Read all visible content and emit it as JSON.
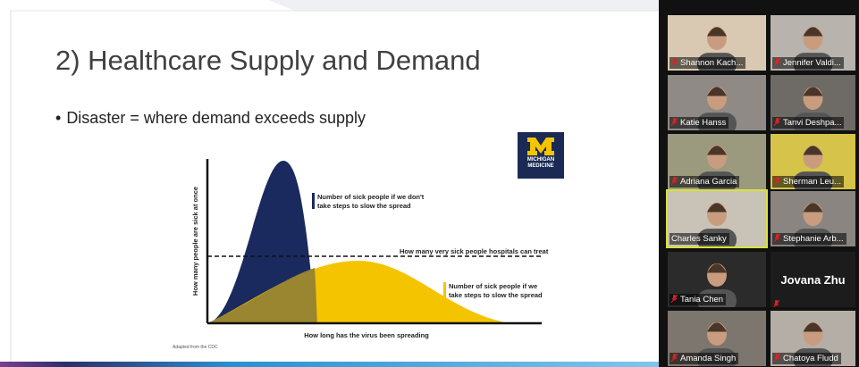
{
  "slide": {
    "title": "2) Healthcare Supply and Demand",
    "bullet": "Disaster = where demand exceeds supply",
    "logo": [
      "MICHIGAN",
      "MEDICINE"
    ],
    "chart": {
      "y_label": "How many people are sick at once",
      "x_label": "How long has the virus been spreading",
      "capacity_label": "How many very sick people hospitals can treat",
      "no_action_label": [
        "Number of sick people if we don't",
        "take steps to slow the spread"
      ],
      "action_label": [
        "Number of sick people if we",
        "take steps to slow the spread"
      ]
    },
    "source": "Adapted from the CDC"
  },
  "participants": [
    {
      "name": "Shannon Kach...",
      "muted": true,
      "video": true
    },
    {
      "name": "Jennifer Valdi...",
      "muted": true,
      "video": true
    },
    {
      "name": "Katie Hanss",
      "muted": true,
      "video": true
    },
    {
      "name": "Tanvi Deshpa...",
      "muted": true,
      "video": true
    },
    {
      "name": "Adriana Garcia",
      "muted": true,
      "video": true
    },
    {
      "name": "Sherman Leu...",
      "muted": true,
      "video": true
    },
    {
      "name": "Charles Sanky",
      "muted": false,
      "video": true,
      "speaking": true
    },
    {
      "name": "Stephanie Arb...",
      "muted": true,
      "video": true
    },
    {
      "name": "Tania Chen",
      "muted": true,
      "video": true
    },
    {
      "name": "Jovana Zhu",
      "muted": true,
      "video": false
    },
    {
      "name": "Amanda Singh",
      "muted": true,
      "video": true
    },
    {
      "name": "Chatoya Fludd",
      "muted": true,
      "video": true
    }
  ]
}
